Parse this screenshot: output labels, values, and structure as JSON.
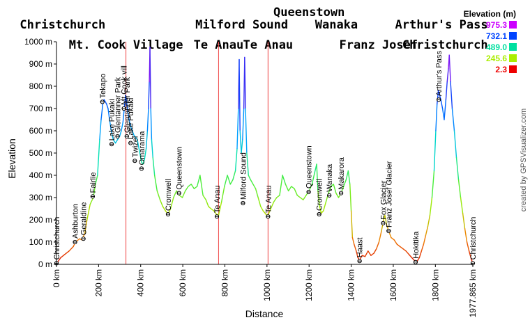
{
  "chart_data": {
    "type": "line",
    "xlabel": "Distance",
    "ylabel": "Elevation",
    "x_unit": "km",
    "y_unit": "m",
    "xlim": [
      0,
      1977.865
    ],
    "ylim": [
      0,
      1000
    ],
    "x_ticks": [
      {
        "value": 0,
        "label": "0 km"
      },
      {
        "value": 200,
        "label": "200 km"
      },
      {
        "value": 400,
        "label": "400 km"
      },
      {
        "value": 600,
        "label": "600 km"
      },
      {
        "value": 800,
        "label": "800 km"
      },
      {
        "value": 1000,
        "label": "1000 km"
      },
      {
        "value": 1200,
        "label": "1200 km"
      },
      {
        "value": 1400,
        "label": "1400 km"
      },
      {
        "value": 1600,
        "label": "1600 km"
      },
      {
        "value": 1800,
        "label": "1800 km"
      },
      {
        "value": 1977.865,
        "label": "1977.865 km"
      }
    ],
    "y_ticks": [
      {
        "value": 0,
        "label": "0 m"
      },
      {
        "value": 100,
        "label": "100 m"
      },
      {
        "value": 200,
        "label": "200 m"
      },
      {
        "value": 300,
        "label": "300 m"
      },
      {
        "value": 400,
        "label": "400 m"
      },
      {
        "value": 500,
        "label": "500 m"
      },
      {
        "value": 600,
        "label": "600 m"
      },
      {
        "value": 700,
        "label": "700 m"
      },
      {
        "value": 800,
        "label": "800 m"
      },
      {
        "value": 900,
        "label": "900 m"
      },
      {
        "value": 1000,
        "label": "1000 m"
      }
    ],
    "grid": false,
    "segment_titles": [
      {
        "text": "Christchurch",
        "row": 1,
        "at_km": 0
      },
      {
        "text": "Mt. Cook Village",
        "row": 2,
        "at_km": 330
      },
      {
        "text": "Te Anau",
        "row": 2,
        "at_km": 770
      },
      {
        "text": "Milford Sound",
        "row": 1,
        "at_km": 880
      },
      {
        "text": "Te Anau",
        "row": 2,
        "at_km": 1005
      },
      {
        "text": "Queenstown",
        "row": 0,
        "at_km": 1200
      },
      {
        "text": "Wanaka",
        "row": 1,
        "at_km": 1330
      },
      {
        "text": "Franz Josef",
        "row": 2,
        "at_km": 1530
      },
      {
        "text": "Arthur's Pass",
        "row": 1,
        "at_km": 1830
      },
      {
        "text": "Christchurch",
        "row": 2,
        "at_km": 1977.865
      }
    ],
    "segment_dividers_km": [
      330,
      770,
      1005
    ],
    "profile": [
      [
        0,
        2.3
      ],
      [
        20,
        30
      ],
      [
        40,
        45
      ],
      [
        60,
        60
      ],
      [
        80,
        80
      ],
      [
        90,
        100
      ],
      [
        110,
        115
      ],
      [
        120,
        110
      ],
      [
        135,
        140
      ],
      [
        145,
        200
      ],
      [
        160,
        270
      ],
      [
        175,
        300
      ],
      [
        185,
        360
      ],
      [
        195,
        400
      ],
      [
        205,
        560
      ],
      [
        212,
        650
      ],
      [
        220,
        720
      ],
      [
        226,
        740
      ],
      [
        232,
        730
      ],
      [
        238,
        720
      ],
      [
        245,
        700
      ],
      [
        252,
        650
      ],
      [
        262,
        590
      ],
      [
        270,
        560
      ],
      [
        280,
        545
      ],
      [
        290,
        560
      ],
      [
        300,
        575
      ],
      [
        308,
        600
      ],
      [
        316,
        640
      ],
      [
        322,
        700
      ],
      [
        328,
        760
      ],
      [
        332,
        740
      ],
      [
        338,
        690
      ],
      [
        345,
        650
      ],
      [
        352,
        620
      ],
      [
        360,
        600
      ],
      [
        368,
        580
      ],
      [
        376,
        570
      ],
      [
        384,
        560
      ],
      [
        392,
        520
      ],
      [
        398,
        490
      ],
      [
        404,
        460
      ],
      [
        410,
        450
      ],
      [
        418,
        470
      ],
      [
        426,
        520
      ],
      [
        432,
        600
      ],
      [
        437,
        700
      ],
      [
        441,
        820
      ],
      [
        444,
        975
      ],
      [
        448,
        700
      ],
      [
        452,
        560
      ],
      [
        458,
        480
      ],
      [
        466,
        400
      ],
      [
        478,
        330
      ],
      [
        492,
        290
      ],
      [
        505,
        260
      ],
      [
        518,
        240
      ],
      [
        530,
        225
      ],
      [
        542,
        250
      ],
      [
        556,
        300
      ],
      [
        570,
        330
      ],
      [
        584,
        310
      ],
      [
        598,
        300
      ],
      [
        612,
        330
      ],
      [
        626,
        350
      ],
      [
        640,
        360
      ],
      [
        654,
        340
      ],
      [
        668,
        350
      ],
      [
        682,
        400
      ],
      [
        696,
        310
      ],
      [
        710,
        290
      ],
      [
        722,
        260
      ],
      [
        734,
        250
      ],
      [
        748,
        240
      ],
      [
        760,
        225
      ],
      [
        770,
        220
      ],
      [
        784,
        280
      ],
      [
        798,
        350
      ],
      [
        812,
        400
      ],
      [
        826,
        360
      ],
      [
        838,
        380
      ],
      [
        850,
        420
      ],
      [
        858,
        520
      ],
      [
        864,
        700
      ],
      [
        868,
        920
      ],
      [
        872,
        600
      ],
      [
        878,
        500
      ],
      [
        884,
        560
      ],
      [
        890,
        700
      ],
      [
        894,
        930
      ],
      [
        898,
        700
      ],
      [
        904,
        500
      ],
      [
        912,
        400
      ],
      [
        922,
        380
      ],
      [
        934,
        360
      ],
      [
        946,
        340
      ],
      [
        958,
        300
      ],
      [
        970,
        260
      ],
      [
        982,
        240
      ],
      [
        995,
        225
      ],
      [
        1005,
        220
      ],
      [
        1018,
        250
      ],
      [
        1032,
        280
      ],
      [
        1046,
        300
      ],
      [
        1060,
        310
      ],
      [
        1074,
        400
      ],
      [
        1088,
        360
      ],
      [
        1102,
        330
      ],
      [
        1116,
        350
      ],
      [
        1130,
        340
      ],
      [
        1144,
        310
      ],
      [
        1158,
        300
      ],
      [
        1172,
        290
      ],
      [
        1186,
        310
      ],
      [
        1200,
        330
      ],
      [
        1214,
        360
      ],
      [
        1226,
        410
      ],
      [
        1236,
        450
      ],
      [
        1242,
        330
      ],
      [
        1250,
        260
      ],
      [
        1258,
        230
      ],
      [
        1268,
        240
      ],
      [
        1280,
        280
      ],
      [
        1292,
        320
      ],
      [
        1304,
        350
      ],
      [
        1316,
        360
      ],
      [
        1328,
        320
      ],
      [
        1340,
        300
      ],
      [
        1352,
        320
      ],
      [
        1364,
        350
      ],
      [
        1376,
        380
      ],
      [
        1386,
        420
      ],
      [
        1394,
        360
      ],
      [
        1400,
        240
      ],
      [
        1406,
        120
      ],
      [
        1414,
        90
      ],
      [
        1424,
        60
      ],
      [
        1432,
        30
      ],
      [
        1440,
        20
      ],
      [
        1452,
        40
      ],
      [
        1466,
        35
      ],
      [
        1480,
        60
      ],
      [
        1494,
        40
      ],
      [
        1508,
        50
      ],
      [
        1520,
        70
      ],
      [
        1532,
        100
      ],
      [
        1544,
        150
      ],
      [
        1554,
        200
      ],
      [
        1560,
        220
      ],
      [
        1568,
        180
      ],
      [
        1578,
        150
      ],
      [
        1590,
        120
      ],
      [
        1604,
        110
      ],
      [
        1618,
        90
      ],
      [
        1632,
        80
      ],
      [
        1646,
        70
      ],
      [
        1660,
        60
      ],
      [
        1674,
        45
      ],
      [
        1688,
        30
      ],
      [
        1698,
        20
      ],
      [
        1706,
        10
      ],
      [
        1714,
        15
      ],
      [
        1724,
        30
      ],
      [
        1734,
        60
      ],
      [
        1744,
        90
      ],
      [
        1754,
        130
      ],
      [
        1764,
        170
      ],
      [
        1774,
        220
      ],
      [
        1784,
        300
      ],
      [
        1794,
        420
      ],
      [
        1802,
        600
      ],
      [
        1808,
        720
      ],
      [
        1814,
        780
      ],
      [
        1820,
        760
      ],
      [
        1826,
        740
      ],
      [
        1834,
        700
      ],
      [
        1842,
        650
      ],
      [
        1850,
        740
      ],
      [
        1856,
        820
      ],
      [
        1862,
        880
      ],
      [
        1866,
        940
      ],
      [
        1872,
        820
      ],
      [
        1880,
        700
      ],
      [
        1890,
        600
      ],
      [
        1900,
        480
      ],
      [
        1910,
        380
      ],
      [
        1920,
        300
      ],
      [
        1930,
        230
      ],
      [
        1940,
        160
      ],
      [
        1950,
        100
      ],
      [
        1960,
        60
      ],
      [
        1970,
        25
      ],
      [
        1977.865,
        5
      ]
    ],
    "waypoints": [
      {
        "name": "Christchurch",
        "km": 0,
        "elev": 5
      },
      {
        "name": "Ashburton",
        "km": 88,
        "elev": 100
      },
      {
        "name": "Geraldine",
        "km": 128,
        "elev": 115
      },
      {
        "name": "Fairlie",
        "km": 172,
        "elev": 305
      },
      {
        "name": "Tekapo",
        "km": 218,
        "elev": 730
      },
      {
        "name": "Lake Pukaki",
        "km": 262,
        "elev": 540
      },
      {
        "name": "Glentanner Park",
        "km": 290,
        "elev": 575
      },
      {
        "name": "Mt Cook vill",
        "km": 320,
        "elev": 700
      },
      {
        "name": "Glentanner Park",
        "km": 334,
        "elev": 575
      },
      {
        "name": "Lake Pukaki",
        "km": 352,
        "elev": 545
      },
      {
        "name": "Twizel",
        "km": 372,
        "elev": 465
      },
      {
        "name": "Omarama",
        "km": 404,
        "elev": 430
      },
      {
        "name": "Cromwell",
        "km": 530,
        "elev": 225
      },
      {
        "name": "Queenstown",
        "km": 582,
        "elev": 320
      },
      {
        "name": "Te Anau",
        "km": 762,
        "elev": 215
      },
      {
        "name": "Milford Sound",
        "km": 886,
        "elev": 275
      },
      {
        "name": "Te Anau",
        "km": 1005,
        "elev": 215
      },
      {
        "name": "Queenstown",
        "km": 1198,
        "elev": 325
      },
      {
        "name": "Cromwell",
        "km": 1248,
        "elev": 225
      },
      {
        "name": "Wanaka",
        "km": 1296,
        "elev": 310
      },
      {
        "name": "Makarora",
        "km": 1352,
        "elev": 320
      },
      {
        "name": "Haast",
        "km": 1440,
        "elev": 15
      },
      {
        "name": "Fox Glacier",
        "km": 1552,
        "elev": 185
      },
      {
        "name": "Franz Josef Glacier",
        "km": 1578,
        "elev": 150
      },
      {
        "name": "Hokitika",
        "km": 1706,
        "elev": 10
      },
      {
        "name": "Arthur's Pass",
        "km": 1816,
        "elev": 740
      },
      {
        "name": "Christchurch",
        "km": 1977.865,
        "elev": 5
      }
    ],
    "legend": {
      "title": "Elevation (m)",
      "placement": "top-right",
      "entries": [
        {
          "label": "975.3",
          "color": "#cc00ff"
        },
        {
          "label": "732.1",
          "color": "#0044ff"
        },
        {
          "label": "489.0",
          "color": "#00e0a0"
        },
        {
          "label": "245.6",
          "color": "#aaee00"
        },
        {
          "label": "2.3",
          "color": "#ee0000"
        }
      ]
    },
    "color_stops": [
      {
        "elev": 2.3,
        "color": "#dd1100"
      },
      {
        "elev": 120,
        "color": "#f08000"
      },
      {
        "elev": 245.6,
        "color": "#a8e800"
      },
      {
        "elev": 370,
        "color": "#40ee40"
      },
      {
        "elev": 489.0,
        "color": "#00e0c0"
      },
      {
        "elev": 610,
        "color": "#00a0ff"
      },
      {
        "elev": 732.1,
        "color": "#0050ff"
      },
      {
        "elev": 850,
        "color": "#5020f0"
      },
      {
        "elev": 975.3,
        "color": "#cc00ff"
      }
    ]
  },
  "credit": "created by GPSVisualizer.com"
}
